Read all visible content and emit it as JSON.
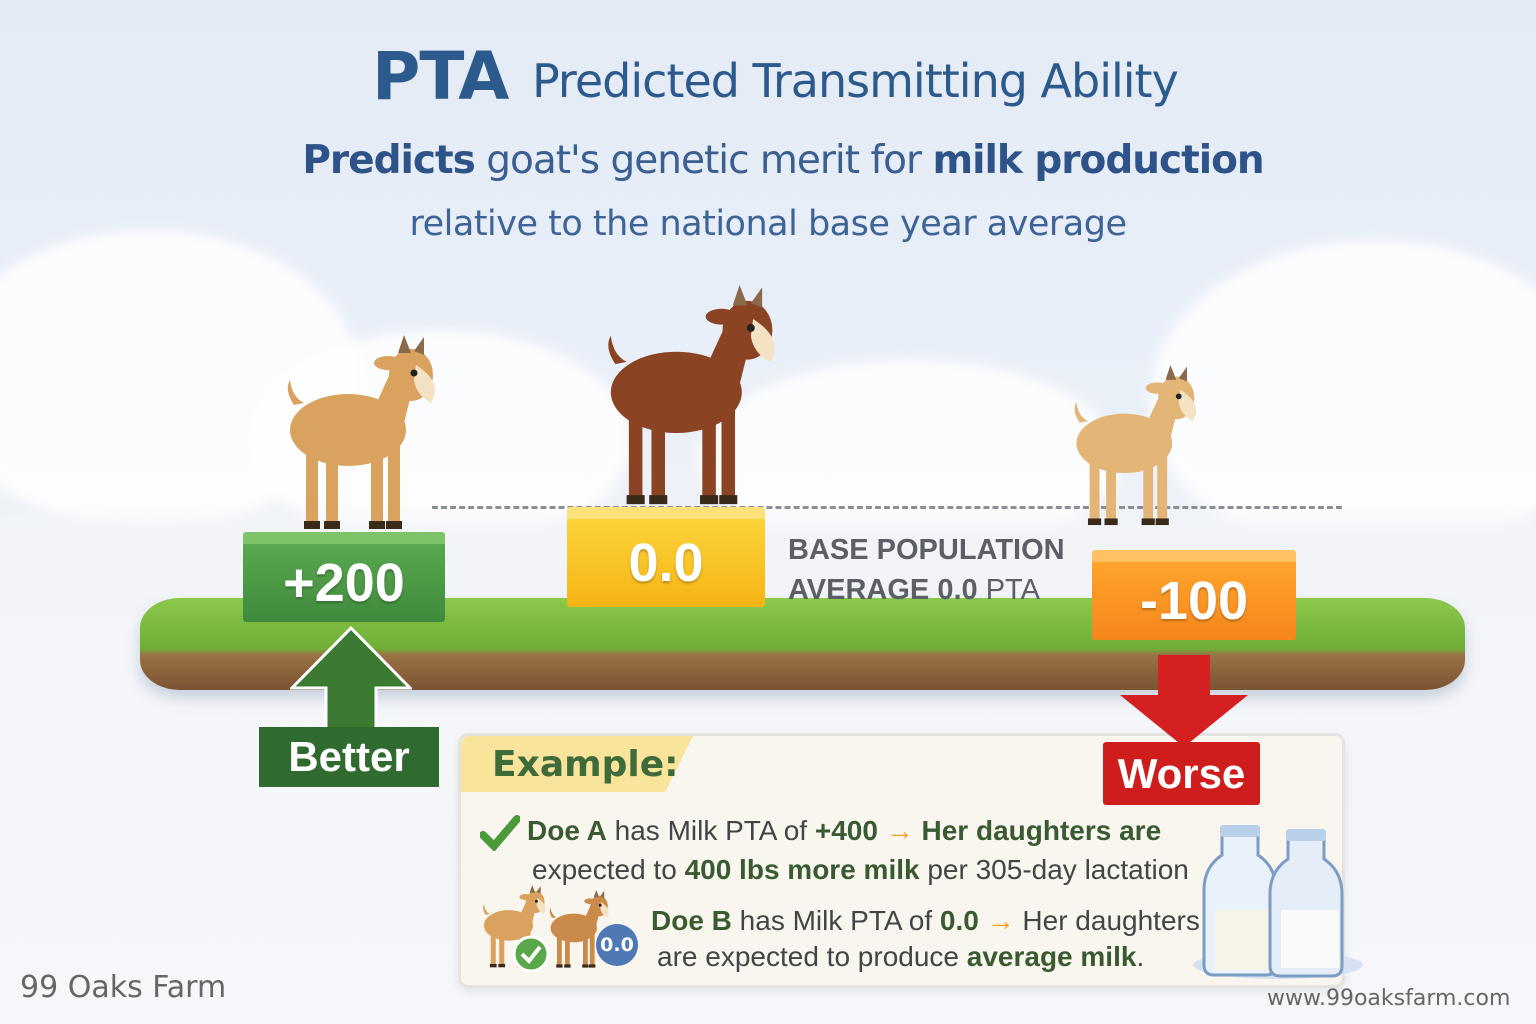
{
  "title": {
    "abbr": "PTA",
    "full": "Predicted Transmitting Ability"
  },
  "subtitle": {
    "bold1": "Predicts",
    "mid": " goat's genetic merit for ",
    "bold2": "milk production",
    "line2": "relative to the national base year average"
  },
  "scale": {
    "high": "+200",
    "average": "0.0",
    "low": "-100",
    "better": "Better",
    "worse": "Worse",
    "base_bold1": "BASE POPULATION",
    "base_bold2": "AVERAGE 0.0",
    "base_unit": " PTA"
  },
  "example": {
    "heading": "Example:",
    "doe_a": {
      "name": "Doe A",
      "t1": " has Milk PTA of ",
      "value": "+400",
      "arrow": " → ",
      "t2": "Her daughters are",
      "t3": "expected to ",
      "t4": "400 lbs more milk",
      "t5": " per 305-day lactation"
    },
    "doe_b": {
      "badge": "0.0",
      "name": "Doe B",
      "t1": " has Milk PTA of ",
      "value": "0.0",
      "arrow": " → ",
      "t2": "Her daughters",
      "t3": "are expected to produce ",
      "t4": "average milk",
      "t5": "."
    }
  },
  "footer": {
    "farm": "99 Oaks Farm",
    "url": "www.99oaksfarm.com"
  },
  "colors": {
    "title": "#2d5a8c",
    "better": "#2f6a2f",
    "worse": "#cf1d1d",
    "average": "#f5b414",
    "below": "#f5861a"
  }
}
